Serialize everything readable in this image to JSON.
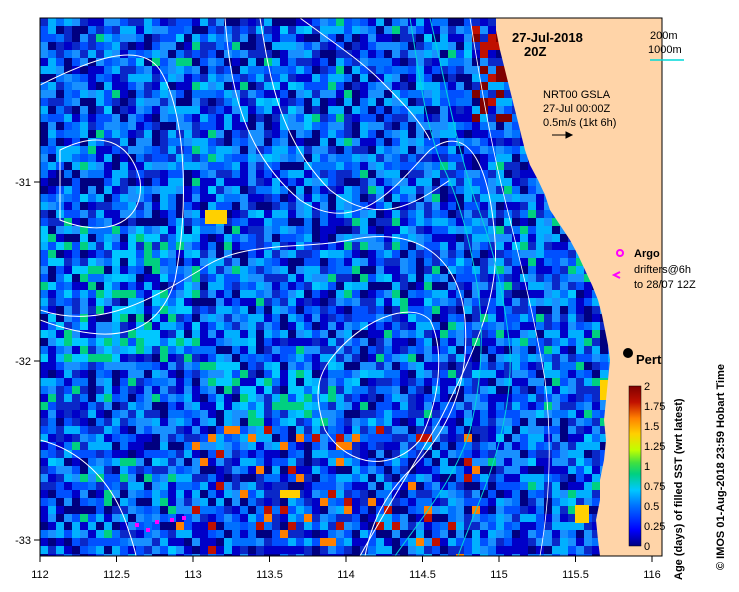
{
  "header": {
    "date": "27-Jul-2018",
    "time": "20Z"
  },
  "depth_legend": {
    "shallow": "200m",
    "deep": "1000m",
    "deep_color": "#00d8d8"
  },
  "current_legend": {
    "product": "NRT00 GSLA",
    "datetime": "27-Jul 00:00Z",
    "scale": "0.5m/s (1kt 6h)"
  },
  "markers": {
    "argo": "Argo",
    "argo_color": "#ff00ff",
    "drifters": "drifters@6h",
    "drifters_until": "to 28/07 12Z",
    "city": "Perth"
  },
  "x_axis": {
    "ticks": [
      "112",
      "112.5",
      "113",
      "113.5",
      "114",
      "114.5",
      "115",
      "115.5",
      "116"
    ]
  },
  "y_axis": {
    "ticks": [
      "-31",
      "-32",
      "-33"
    ]
  },
  "colorbar": {
    "label": "Age (days) of filled SST (wrt latest)",
    "ticks": [
      "0",
      "0.25",
      "0.5",
      "0.75",
      "1",
      "1.25",
      "1.5",
      "1.75",
      "2"
    ],
    "colors": [
      "#000080",
      "#0000ff",
      "#0070ff",
      "#00c8ff",
      "#00d080",
      "#40e040",
      "#c0ff00",
      "#ffd000",
      "#ff8000",
      "#c01000",
      "#800000"
    ]
  },
  "footer": {
    "credit": "© IMOS 01-Aug-2018 23:59 Hobart Time"
  }
}
